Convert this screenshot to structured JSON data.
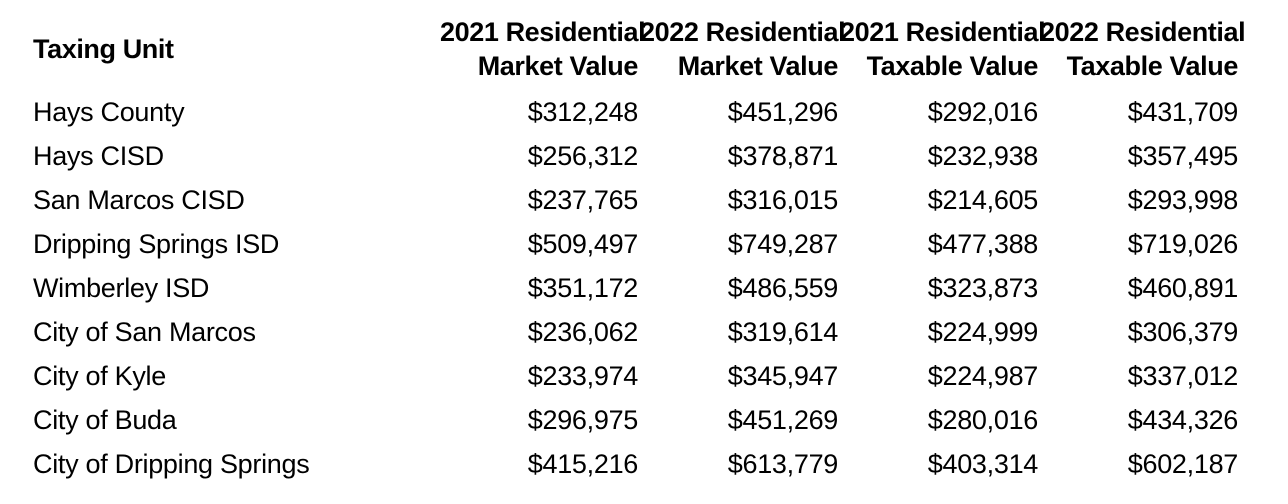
{
  "colors": {
    "background": "#ffffff",
    "text": "#000000"
  },
  "table": {
    "unit_header": "Taxing Unit",
    "value_headers": [
      {
        "line1": "2021 Residential",
        "line2": "Market Value"
      },
      {
        "line1": "2022 Residential",
        "line2": "Market Value"
      },
      {
        "line1": "2021 Residential",
        "line2": "Taxable Value"
      },
      {
        "line1": "2022 Residential",
        "line2": "Taxable Value"
      }
    ],
    "rows": [
      {
        "unit": "Hays County",
        "v1": "$312,248",
        "v2": "$451,296",
        "v3": "$292,016",
        "v4": "$431,709"
      },
      {
        "unit": "Hays CISD",
        "v1": "$256,312",
        "v2": "$378,871",
        "v3": "$232,938",
        "v4": "$357,495"
      },
      {
        "unit": "San Marcos CISD",
        "v1": "$237,765",
        "v2": "$316,015",
        "v3": "$214,605",
        "v4": "$293,998"
      },
      {
        "unit": "Dripping Springs ISD",
        "v1": "$509,497",
        "v2": "$749,287",
        "v3": "$477,388",
        "v4": "$719,026"
      },
      {
        "unit": "Wimberley ISD",
        "v1": "$351,172",
        "v2": "$486,559",
        "v3": "$323,873",
        "v4": "$460,891"
      },
      {
        "unit": "City of San Marcos",
        "v1": "$236,062",
        "v2": "$319,614",
        "v3": "$224,999",
        "v4": "$306,379"
      },
      {
        "unit": "City of Kyle",
        "v1": "$233,974",
        "v2": "$345,947",
        "v3": "$224,987",
        "v4": "$337,012"
      },
      {
        "unit": "City of Buda",
        "v1": "$296,975",
        "v2": "$451,269",
        "v3": "$280,016",
        "v4": "$434,326"
      },
      {
        "unit": "City of Dripping Springs",
        "v1": "$415,216",
        "v2": "$613,779",
        "v3": "$403,314",
        "v4": "$602,187"
      }
    ]
  },
  "chart_data": {
    "type": "table",
    "title": "",
    "columns": [
      "Taxing Unit",
      "2021 Residential Market Value",
      "2022 Residential Market Value",
      "2021 Residential Taxable Value",
      "2022 Residential Taxable Value"
    ],
    "categories": [
      "Hays County",
      "Hays CISD",
      "San Marcos CISD",
      "Dripping Springs ISD",
      "Wimberley ISD",
      "City of San Marcos",
      "City of Kyle",
      "City of Buda",
      "City of Dripping Springs"
    ],
    "series": [
      {
        "name": "2021 Residential Market Value",
        "values": [
          312248,
          256312,
          237765,
          509497,
          351172,
          236062,
          233974,
          296975,
          415216
        ]
      },
      {
        "name": "2022 Residential Market Value",
        "values": [
          451296,
          378871,
          316015,
          749287,
          486559,
          319614,
          345947,
          451269,
          613779
        ]
      },
      {
        "name": "2021 Residential Taxable Value",
        "values": [
          292016,
          232938,
          214605,
          477388,
          323873,
          224999,
          224987,
          280016,
          403314
        ]
      },
      {
        "name": "2022 Residential Taxable Value",
        "values": [
          431709,
          357495,
          293998,
          719026,
          460891,
          306379,
          337012,
          434326,
          602187
        ]
      }
    ]
  }
}
